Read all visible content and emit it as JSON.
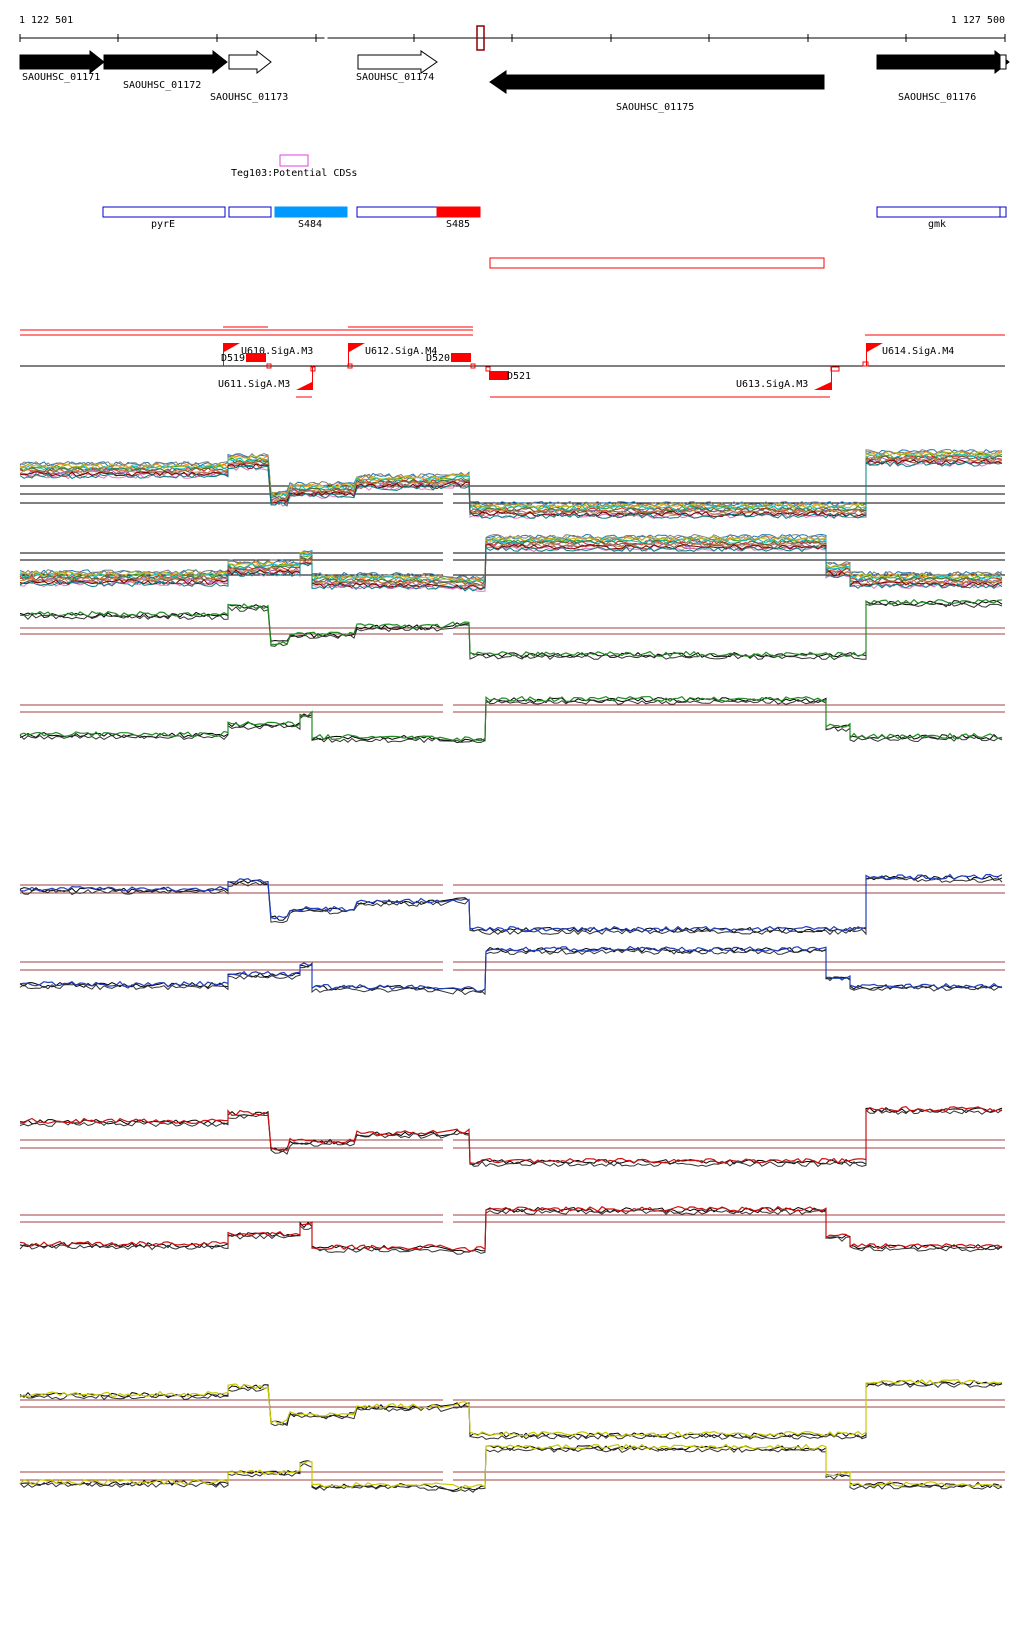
{
  "coords": {
    "start": "1 122 501",
    "end": "1 127 500"
  },
  "genes": [
    {
      "name": "SAOUHSC_01171",
      "fill": "black",
      "dir": "+"
    },
    {
      "name": "SAOUHSC_01172",
      "fill": "black",
      "dir": "+"
    },
    {
      "name": "SAOUHSC_01173",
      "fill": "white",
      "dir": "+"
    },
    {
      "name": "SAOUHSC_01174",
      "fill": "white",
      "dir": "+"
    },
    {
      "name": "SAOUHSC_01175",
      "fill": "black",
      "dir": "-"
    },
    {
      "name": "SAOUHSC_01176",
      "fill": "black",
      "dir": "+"
    }
  ],
  "teg": {
    "label": "Teg103:Potential CDSs",
    "color": "#e040e0"
  },
  "features": [
    {
      "name": "pyrE",
      "style": "outline",
      "color": "#0000cc"
    },
    {
      "name": "",
      "style": "outline",
      "color": "#0000cc"
    },
    {
      "name": "S484",
      "style": "filled",
      "color": "#0099ff"
    },
    {
      "name": "",
      "style": "outline",
      "color": "#0000cc"
    },
    {
      "name": "S485",
      "style": "filled",
      "color": "#ff0000"
    },
    {
      "name": "gmk",
      "style": "outline",
      "color": "#0000cc"
    }
  ],
  "promoters": [
    {
      "name": "U610.SigA.M3",
      "strand": "+"
    },
    {
      "name": "U612.SigA.M4",
      "strand": "+"
    },
    {
      "name": "U614.SigA.M4",
      "strand": "+"
    },
    {
      "name": "U611.SigA.M3",
      "strand": "-"
    },
    {
      "name": "U613.SigA.M3",
      "strand": "-"
    }
  ],
  "terminators": [
    {
      "name": "D519"
    },
    {
      "name": "D520"
    },
    {
      "name": "D521"
    }
  ],
  "colors": {
    "gene": "#000000",
    "red": "#ff0000",
    "guide": "#a04040",
    "green": "#228b22",
    "blue": "#1f3fbf",
    "darkred": "#cc1010",
    "yellow": "#c8c800"
  }
}
